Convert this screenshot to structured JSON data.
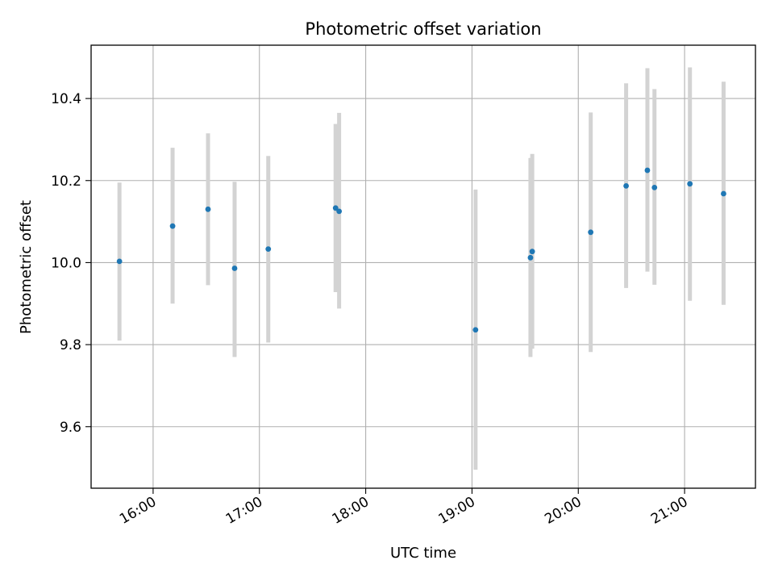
{
  "chart_data": {
    "type": "scatter",
    "title": "Photometric offset variation",
    "xlabel": "UTC time",
    "ylabel": "Photometric offset",
    "xlim": [
      "15:25",
      "21:40"
    ],
    "ylim": [
      9.45,
      10.53
    ],
    "x_ticks": [
      "16:00",
      "17:00",
      "18:00",
      "19:00",
      "20:00",
      "21:00"
    ],
    "y_ticks": [
      "9.6",
      "9.8",
      "10.0",
      "10.2",
      "10.4"
    ],
    "grid": true,
    "marker_color": "#1f77b4",
    "errorbar_color": "#d3d3d3",
    "points": [
      {
        "x": "15:41",
        "y": 10.003,
        "low": 9.81,
        "high": 10.195
      },
      {
        "x": "16:11",
        "y": 10.089,
        "low": 9.9,
        "high": 10.28
      },
      {
        "x": "16:31",
        "y": 10.13,
        "low": 9.945,
        "high": 10.315
      },
      {
        "x": "16:46",
        "y": 9.986,
        "low": 9.77,
        "high": 10.197
      },
      {
        "x": "17:05",
        "y": 10.033,
        "low": 9.805,
        "high": 10.26
      },
      {
        "x": "17:43",
        "y": 10.133,
        "low": 9.928,
        "high": 10.338
      },
      {
        "x": "17:45",
        "y": 10.125,
        "low": 9.888,
        "high": 10.365
      },
      {
        "x": "19:02",
        "y": 9.836,
        "low": 9.495,
        "high": 10.178
      },
      {
        "x": "19:33",
        "y": 10.012,
        "low": 9.77,
        "high": 10.255
      },
      {
        "x": "19:34",
        "y": 10.027,
        "low": 9.79,
        "high": 10.265
      },
      {
        "x": "20:07",
        "y": 10.074,
        "low": 9.782,
        "high": 10.366
      },
      {
        "x": "20:27",
        "y": 10.187,
        "low": 9.938,
        "high": 10.437
      },
      {
        "x": "20:39",
        "y": 10.225,
        "low": 9.978,
        "high": 10.474
      },
      {
        "x": "20:43",
        "y": 10.183,
        "low": 9.946,
        "high": 10.423
      },
      {
        "x": "21:03",
        "y": 10.192,
        "low": 9.907,
        "high": 10.476
      },
      {
        "x": "21:22",
        "y": 10.168,
        "low": 9.897,
        "high": 10.441
      }
    ]
  }
}
